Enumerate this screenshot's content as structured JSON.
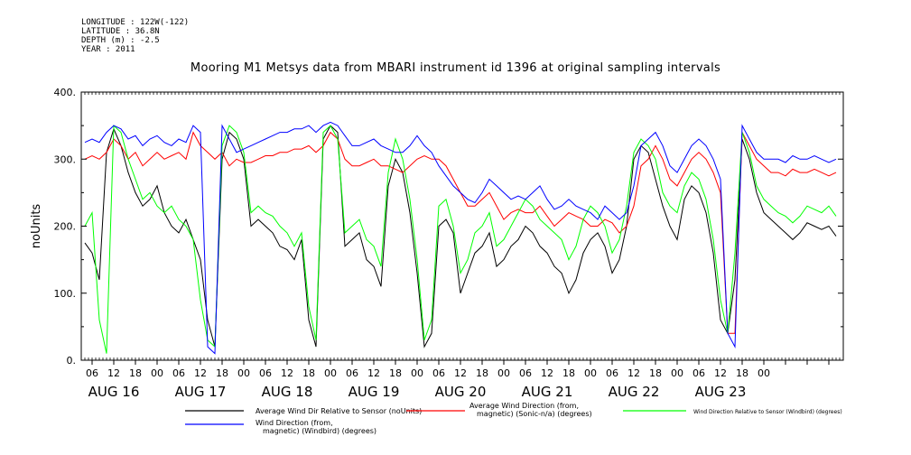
{
  "meta": {
    "lines": [
      "LONGITUDE : 122W(-122)",
      "LATITUDE : 36.8N",
      "DEPTH (m) : -2.5",
      "YEAR : 2011"
    ]
  },
  "colors": {
    "black": "#000000",
    "red": "#ff0000",
    "green": "#00ff00",
    "blue": "#0000ff"
  },
  "chart_data": {
    "type": "line",
    "title": "Mooring M1 Metsys data from MBARI instrument id 1396 at original sampling intervals",
    "ylabel": "noUnits",
    "ylim": [
      0,
      400
    ],
    "yticks": [
      0,
      100,
      200,
      300,
      400
    ],
    "ytick_labels": [
      "0.",
      "100.",
      "200.",
      "300.",
      "400."
    ],
    "xlim_hours": [
      -21,
      190
    ],
    "hour_tick_labels": [
      "06",
      "12",
      "18",
      "00",
      "06",
      "12",
      "18",
      "00",
      "06",
      "12",
      "18",
      "00",
      "06",
      "12",
      "18",
      "00",
      "06",
      "12",
      "18",
      "00",
      "06",
      "12",
      "18",
      "00",
      "06",
      "12",
      "18",
      "00",
      "06",
      "12",
      "18",
      "00"
    ],
    "day_labels": [
      "AUG 16",
      "AUG 17",
      "AUG 18",
      "AUG 19",
      "AUG 20",
      "AUG 21",
      "AUG 22",
      "AUG 23"
    ],
    "series": [
      {
        "name": "Average Wind Dir Relative to Sensor (noUnits)",
        "color": "#000000",
        "x": [
          -20,
          -18,
          -16,
          -14,
          -12,
          -10,
          -8,
          -6,
          -4,
          -2,
          0,
          2,
          4,
          6,
          8,
          10,
          12,
          14,
          16,
          18,
          20,
          22,
          24,
          26,
          28,
          30,
          32,
          34,
          36,
          38,
          40,
          42,
          44,
          46,
          48,
          50,
          52,
          54,
          56,
          58,
          60,
          62,
          64,
          66,
          68,
          70,
          72,
          74,
          76,
          78,
          80,
          82,
          84,
          86,
          88,
          90,
          92,
          94,
          96,
          98,
          100,
          102,
          104,
          106,
          108,
          110,
          112,
          114,
          116,
          118,
          120,
          122,
          124,
          126,
          128,
          130,
          132,
          134,
          136,
          138,
          140,
          142,
          144,
          146,
          148,
          150,
          152,
          154,
          156,
          158,
          160,
          162,
          164,
          166,
          168,
          170,
          172,
          174,
          176,
          178,
          180,
          182,
          184,
          186,
          188
        ],
        "values": [
          175,
          160,
          120,
          310,
          345,
          320,
          280,
          250,
          230,
          240,
          260,
          220,
          200,
          190,
          210,
          180,
          150,
          60,
          20,
          300,
          340,
          330,
          300,
          200,
          210,
          200,
          190,
          170,
          165,
          150,
          180,
          60,
          20,
          330,
          350,
          340,
          170,
          180,
          190,
          150,
          140,
          110,
          260,
          300,
          280,
          220,
          130,
          20,
          40,
          200,
          210,
          190,
          100,
          130,
          160,
          170,
          190,
          140,
          150,
          170,
          180,
          200,
          190,
          170,
          160,
          140,
          130,
          100,
          120,
          160,
          180,
          190,
          170,
          130,
          150,
          200,
          300,
          320,
          310,
          270,
          230,
          200,
          180,
          240,
          260,
          250,
          220,
          160,
          60,
          40,
          120,
          330,
          300,
          250,
          220,
          210,
          200,
          190,
          180,
          190,
          205,
          200,
          195,
          200,
          185
        ]
      },
      {
        "name": "Average Wind Direction (from, magnetic) (Sonic-n/a) (degrees)",
        "color": "#ff0000",
        "x": [
          -20,
          -18,
          -16,
          -14,
          -12,
          -10,
          -8,
          -6,
          -4,
          -2,
          0,
          2,
          4,
          6,
          8,
          10,
          12,
          14,
          16,
          18,
          20,
          22,
          24,
          26,
          28,
          30,
          32,
          34,
          36,
          38,
          40,
          42,
          44,
          46,
          48,
          50,
          52,
          54,
          56,
          58,
          60,
          62,
          64,
          66,
          68,
          70,
          72,
          74,
          76,
          78,
          80,
          82,
          84,
          86,
          88,
          90,
          92,
          94,
          96,
          98,
          100,
          102,
          104,
          106,
          108,
          110,
          112,
          114,
          116,
          118,
          120,
          122,
          124,
          126,
          128,
          130,
          132,
          134,
          136,
          138,
          140,
          142,
          144,
          146,
          148,
          150,
          152,
          154,
          156,
          158,
          160,
          162,
          164,
          166,
          168,
          170,
          172,
          174,
          176,
          178,
          180,
          182,
          184,
          186,
          188
        ],
        "values": [
          300,
          305,
          300,
          310,
          330,
          320,
          300,
          310,
          290,
          300,
          310,
          300,
          305,
          310,
          300,
          340,
          320,
          310,
          300,
          310,
          290,
          300,
          295,
          295,
          300,
          305,
          305,
          310,
          310,
          315,
          315,
          320,
          310,
          320,
          340,
          330,
          300,
          290,
          290,
          295,
          300,
          290,
          290,
          285,
          280,
          290,
          300,
          305,
          300,
          300,
          290,
          270,
          250,
          230,
          230,
          240,
          250,
          230,
          210,
          220,
          225,
          220,
          220,
          230,
          215,
          200,
          210,
          220,
          215,
          210,
          200,
          200,
          210,
          205,
          190,
          200,
          230,
          290,
          300,
          320,
          300,
          270,
          260,
          280,
          300,
          310,
          300,
          280,
          250,
          40,
          40,
          340,
          320,
          300,
          290,
          280,
          280,
          275,
          285,
          280,
          280,
          285,
          280,
          275,
          280
        ]
      },
      {
        "name": "Wind Direction Relative to Sensor (Windbird) (degrees)",
        "color": "#00ff00",
        "x": [
          -20,
          -18,
          -16,
          -14,
          -12,
          -10,
          -8,
          -6,
          -4,
          -2,
          0,
          2,
          4,
          6,
          8,
          10,
          12,
          14,
          16,
          18,
          20,
          22,
          24,
          26,
          28,
          30,
          32,
          34,
          36,
          38,
          40,
          42,
          44,
          46,
          48,
          50,
          52,
          54,
          56,
          58,
          60,
          62,
          64,
          66,
          68,
          70,
          72,
          74,
          76,
          78,
          80,
          82,
          84,
          86,
          88,
          90,
          92,
          94,
          96,
          98,
          100,
          102,
          104,
          106,
          108,
          110,
          112,
          114,
          116,
          118,
          120,
          122,
          124,
          126,
          128,
          130,
          132,
          134,
          136,
          138,
          140,
          142,
          144,
          146,
          148,
          150,
          152,
          154,
          156,
          158,
          160,
          162,
          164,
          166,
          168,
          170,
          172,
          174,
          176,
          178,
          180,
          182,
          184,
          186,
          188
        ],
        "values": [
          200,
          220,
          60,
          10,
          350,
          340,
          300,
          270,
          240,
          250,
          230,
          220,
          230,
          210,
          200,
          180,
          90,
          30,
          20,
          320,
          350,
          340,
          310,
          220,
          230,
          220,
          215,
          200,
          190,
          170,
          190,
          80,
          30,
          340,
          350,
          330,
          190,
          200,
          210,
          180,
          170,
          140,
          280,
          330,
          300,
          240,
          150,
          30,
          60,
          230,
          240,
          200,
          130,
          150,
          190,
          200,
          220,
          170,
          180,
          200,
          220,
          240,
          230,
          210,
          200,
          190,
          180,
          150,
          170,
          210,
          230,
          220,
          200,
          160,
          180,
          230,
          310,
          330,
          320,
          300,
          250,
          230,
          220,
          260,
          280,
          270,
          240,
          180,
          90,
          40,
          160,
          340,
          310,
          260,
          240,
          230,
          220,
          215,
          205,
          215,
          230,
          225,
          220,
          230,
          215
        ]
      },
      {
        "name": "Wind Direction (from, magnetic) (Windbird) (degrees)",
        "color": "#0000ff",
        "x": [
          -20,
          -18,
          -16,
          -14,
          -12,
          -10,
          -8,
          -6,
          -4,
          -2,
          0,
          2,
          4,
          6,
          8,
          10,
          12,
          14,
          16,
          18,
          20,
          22,
          24,
          26,
          28,
          30,
          32,
          34,
          36,
          38,
          40,
          42,
          44,
          46,
          48,
          50,
          52,
          54,
          56,
          58,
          60,
          62,
          64,
          66,
          68,
          70,
          72,
          74,
          76,
          78,
          80,
          82,
          84,
          86,
          88,
          90,
          92,
          94,
          96,
          98,
          100,
          102,
          104,
          106,
          108,
          110,
          112,
          114,
          116,
          118,
          120,
          122,
          124,
          126,
          128,
          130,
          132,
          134,
          136,
          138,
          140,
          142,
          144,
          146,
          148,
          150,
          152,
          154,
          156,
          158,
          160,
          162,
          164,
          166,
          168,
          170,
          172,
          174,
          176,
          178,
          180,
          182,
          184,
          186,
          188
        ],
        "values": [
          325,
          330,
          325,
          340,
          350,
          345,
          330,
          335,
          320,
          330,
          335,
          325,
          320,
          330,
          325,
          350,
          340,
          20,
          10,
          350,
          330,
          310,
          315,
          320,
          325,
          330,
          335,
          340,
          340,
          345,
          345,
          350,
          340,
          350,
          355,
          350,
          335,
          320,
          320,
          325,
          330,
          320,
          315,
          310,
          310,
          320,
          335,
          320,
          310,
          290,
          275,
          260,
          250,
          240,
          235,
          250,
          270,
          260,
          250,
          240,
          245,
          240,
          250,
          260,
          240,
          225,
          230,
          240,
          230,
          225,
          220,
          210,
          230,
          220,
          210,
          220,
          260,
          320,
          330,
          340,
          320,
          290,
          280,
          300,
          320,
          330,
          320,
          300,
          270,
          40,
          20,
          350,
          330,
          310,
          300,
          300,
          300,
          295,
          305,
          300,
          300,
          305,
          300,
          295,
          300
        ]
      }
    ],
    "legend": {
      "placement": "bottom",
      "entries": [
        {
          "label_lines": [
            "Average Wind Dir Relative to Sensor (noUnits)"
          ],
          "color": "#000000"
        },
        {
          "label_lines": [
            "Average Wind Direction (from,",
            "magnetic) (Sonic-n/a) (degrees)"
          ],
          "color": "#ff0000"
        },
        {
          "label_lines": [
            "Wind Direction Relative to Sensor (Windbird) (degrees)"
          ],
          "color": "#00ff00"
        },
        {
          "label_lines": [
            "Wind Direction (from,",
            "magnetic) (Windbird) (degrees)"
          ],
          "color": "#0000ff"
        }
      ]
    },
    "grid": false
  }
}
